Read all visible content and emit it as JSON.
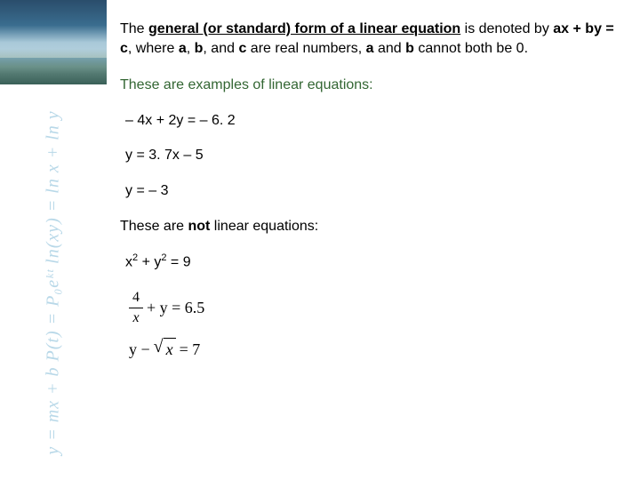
{
  "sidebar": {
    "banner": {
      "sky_gradient": [
        "#2a4d6b",
        "#3a6d8f",
        "#a8c8d8",
        "#d8e8f0"
      ],
      "water_gradient": [
        "#7aa8c8",
        "#4a7898"
      ]
    },
    "formulas_text": "y = mx + b    P(t) = P₀eᵏᵗ    ln(xy) = ln x + ln y",
    "formulas_color": "#b8d8e8"
  },
  "content": {
    "intro": {
      "lead": "The ",
      "bold_underline": "general (or standard) form of a linear equation",
      "after1": " is denoted by ",
      "eq": "ax + by = c",
      "after2": ", where ",
      "a": "a",
      "b": "b",
      "after3": ", and ",
      "c": "c",
      "after4": " are real numbers, ",
      "tail": " cannot both be 0."
    },
    "heading_examples": "These are examples of linear equations:",
    "heading_color": "#336633",
    "examples": [
      "– 4x + 2y = – 6. 2",
      "y = 3. 7x – 5",
      "y = – 3"
    ],
    "heading_not": {
      "pre": "These are ",
      "bold": "not",
      "post": " linear equations:"
    },
    "not_linear": {
      "eq1": {
        "before": "x",
        "sup1": "2",
        "mid": " + y",
        "sup2": "2",
        "after": " = 9"
      },
      "eq2": {
        "num": "4",
        "den": "x",
        "rest": "+ y = 6.5"
      },
      "eq3": {
        "lhs": "y − ",
        "root_arg": "x",
        "rhs": " = 7"
      }
    }
  }
}
